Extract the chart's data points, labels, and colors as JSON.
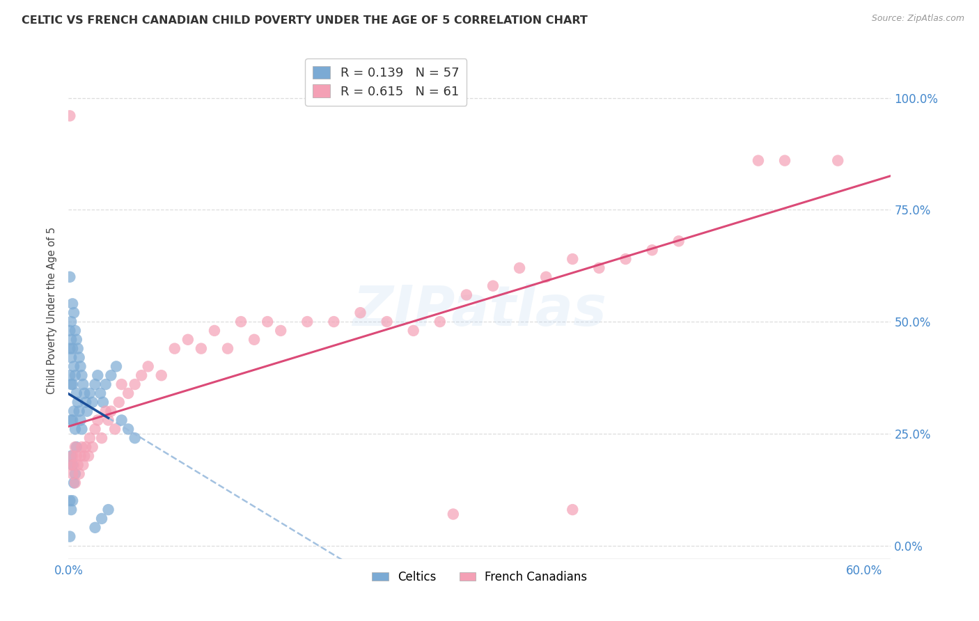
{
  "title": "CELTIC VS FRENCH CANADIAN CHILD POVERTY UNDER THE AGE OF 5 CORRELATION CHART",
  "source": "Source: ZipAtlas.com",
  "ylabel_label": "Child Poverty Under the Age of 5",
  "xlim": [
    0.0,
    0.62
  ],
  "ylim": [
    -0.03,
    1.08
  ],
  "ytick_vals": [
    0.0,
    0.25,
    0.5,
    0.75,
    1.0
  ],
  "ytick_labels": [
    "0.0%",
    "25.0%",
    "50.0%",
    "75.0%",
    "100.0%"
  ],
  "xtick_vals": [
    0.0,
    0.1,
    0.2,
    0.3,
    0.4,
    0.5,
    0.6
  ],
  "xtick_labels": [
    "0.0%",
    "",
    "",
    "",
    "",
    "",
    "60.0%"
  ],
  "watermark": "ZIPatlas",
  "celtic_R": "0.139",
  "celtic_N": "57",
  "french_R": "0.615",
  "french_N": "61",
  "celtic_color": "#7BAAD4",
  "celtic_dark": "#1A4E99",
  "french_color": "#F4A0B5",
  "french_dark": "#D94070",
  "dashed_color": "#99BBDD",
  "tick_color": "#4488CC",
  "title_color": "#333333",
  "source_color": "#999999",
  "grid_color": "#dddddd",
  "celtic_x": [
    0.001,
    0.001,
    0.001,
    0.001,
    0.001,
    0.002,
    0.002,
    0.002,
    0.002,
    0.002,
    0.002,
    0.002,
    0.003,
    0.003,
    0.003,
    0.003,
    0.003,
    0.003,
    0.004,
    0.004,
    0.004,
    0.004,
    0.005,
    0.005,
    0.005,
    0.005,
    0.006,
    0.006,
    0.006,
    0.007,
    0.007,
    0.008,
    0.008,
    0.009,
    0.009,
    0.01,
    0.01,
    0.011,
    0.012,
    0.013,
    0.014,
    0.016,
    0.018,
    0.02,
    0.022,
    0.024,
    0.026,
    0.028,
    0.032,
    0.036,
    0.04,
    0.045,
    0.05,
    0.02,
    0.025,
    0.03,
    0.001
  ],
  "celtic_y": [
    0.6,
    0.48,
    0.44,
    0.38,
    0.1,
    0.5,
    0.46,
    0.42,
    0.36,
    0.28,
    0.2,
    0.08,
    0.54,
    0.44,
    0.36,
    0.28,
    0.18,
    0.1,
    0.52,
    0.4,
    0.3,
    0.14,
    0.48,
    0.38,
    0.26,
    0.16,
    0.46,
    0.34,
    0.22,
    0.44,
    0.32,
    0.42,
    0.3,
    0.4,
    0.28,
    0.38,
    0.26,
    0.36,
    0.34,
    0.32,
    0.3,
    0.34,
    0.32,
    0.36,
    0.38,
    0.34,
    0.32,
    0.36,
    0.38,
    0.4,
    0.28,
    0.26,
    0.24,
    0.04,
    0.06,
    0.08,
    0.02
  ],
  "french_x": [
    0.001,
    0.002,
    0.003,
    0.003,
    0.004,
    0.005,
    0.005,
    0.006,
    0.007,
    0.008,
    0.009,
    0.01,
    0.011,
    0.012,
    0.013,
    0.015,
    0.016,
    0.018,
    0.02,
    0.022,
    0.025,
    0.028,
    0.03,
    0.032,
    0.035,
    0.038,
    0.04,
    0.045,
    0.05,
    0.055,
    0.06,
    0.07,
    0.08,
    0.09,
    0.1,
    0.11,
    0.12,
    0.13,
    0.14,
    0.15,
    0.16,
    0.18,
    0.2,
    0.22,
    0.24,
    0.26,
    0.28,
    0.3,
    0.32,
    0.34,
    0.36,
    0.38,
    0.4,
    0.42,
    0.44,
    0.46,
    0.52,
    0.54,
    0.58,
    0.38,
    0.29
  ],
  "french_y": [
    0.96,
    0.18,
    0.2,
    0.16,
    0.18,
    0.22,
    0.14,
    0.2,
    0.18,
    0.16,
    0.2,
    0.22,
    0.18,
    0.2,
    0.22,
    0.2,
    0.24,
    0.22,
    0.26,
    0.28,
    0.24,
    0.3,
    0.28,
    0.3,
    0.26,
    0.32,
    0.36,
    0.34,
    0.36,
    0.38,
    0.4,
    0.38,
    0.44,
    0.46,
    0.44,
    0.48,
    0.44,
    0.5,
    0.46,
    0.5,
    0.48,
    0.5,
    0.5,
    0.52,
    0.5,
    0.48,
    0.5,
    0.56,
    0.58,
    0.62,
    0.6,
    0.64,
    0.62,
    0.64,
    0.66,
    0.68,
    0.86,
    0.86,
    0.86,
    0.08,
    0.07
  ]
}
